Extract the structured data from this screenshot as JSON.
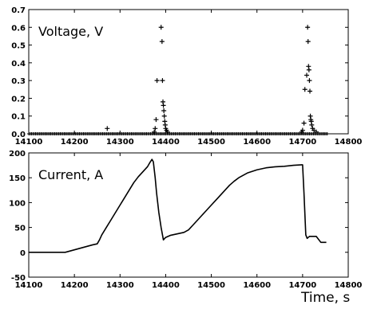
{
  "chart_data": [
    {
      "type": "scatter",
      "label": "Voltage, V",
      "xlim": [
        14100,
        14800
      ],
      "ylim": [
        0,
        0.7
      ],
      "xticks": [
        14100,
        14200,
        14300,
        14400,
        14500,
        14600,
        14700,
        14800
      ],
      "yticks": [
        0.0,
        0.1,
        0.2,
        0.3,
        0.4,
        0.5,
        0.6,
        0.7
      ],
      "tick_labels_x": [
        "14100",
        "14200",
        "14300",
        "14400",
        "14500",
        "14600",
        "14700",
        "14800"
      ],
      "tick_labels_y": [
        "0.0",
        "0.1",
        "0.2",
        "0.3",
        "0.4",
        "0.5",
        "0.6",
        "0.7"
      ],
      "marker": "+",
      "baseline": {
        "x_start": 14100,
        "x_end": 14755,
        "step": 3,
        "y": 0.0
      },
      "points": [
        [
          14272,
          0.03
        ],
        [
          14375,
          0.01
        ],
        [
          14377,
          0.03
        ],
        [
          14379,
          0.08
        ],
        [
          14381,
          0.3
        ],
        [
          14390,
          0.6
        ],
        [
          14392,
          0.52
        ],
        [
          14393,
          0.3
        ],
        [
          14394,
          0.18
        ],
        [
          14395,
          0.16
        ],
        [
          14396,
          0.13
        ],
        [
          14397,
          0.1
        ],
        [
          14398,
          0.07
        ],
        [
          14399,
          0.05
        ],
        [
          14400,
          0.03
        ],
        [
          14402,
          0.02
        ],
        [
          14404,
          0.01
        ],
        [
          14698,
          0.01
        ],
        [
          14700,
          0.02
        ],
        [
          14703,
          0.06
        ],
        [
          14705,
          0.25
        ],
        [
          14709,
          0.33
        ],
        [
          14711,
          0.6
        ],
        [
          14712,
          0.52
        ],
        [
          14713,
          0.38
        ],
        [
          14714,
          0.36
        ],
        [
          14715,
          0.3
        ],
        [
          14716,
          0.24
        ],
        [
          14717,
          0.1
        ],
        [
          14718,
          0.08
        ],
        [
          14719,
          0.07
        ],
        [
          14720,
          0.05
        ],
        [
          14722,
          0.03
        ],
        [
          14725,
          0.02
        ],
        [
          14730,
          0.01
        ]
      ],
      "color": "#000000"
    },
    {
      "type": "line",
      "label": "Current, A",
      "xlim": [
        14100,
        14800
      ],
      "ylim": [
        -50,
        200
      ],
      "xticks": [
        14100,
        14200,
        14300,
        14400,
        14500,
        14600,
        14700,
        14800
      ],
      "yticks": [
        -50,
        0,
        50,
        100,
        150,
        200
      ],
      "tick_labels_x": [
        "14100",
        "14200",
        "14300",
        "14400",
        "14500",
        "14600",
        "14700",
        "14800"
      ],
      "tick_labels_y": [
        "-50",
        "0",
        "50",
        "100",
        "150",
        "200"
      ],
      "points": [
        [
          14100,
          0
        ],
        [
          14180,
          0
        ],
        [
          14200,
          5
        ],
        [
          14220,
          10
        ],
        [
          14240,
          15
        ],
        [
          14250,
          17
        ],
        [
          14255,
          25
        ],
        [
          14260,
          35
        ],
        [
          14270,
          50
        ],
        [
          14280,
          65
        ],
        [
          14290,
          80
        ],
        [
          14300,
          95
        ],
        [
          14310,
          110
        ],
        [
          14320,
          125
        ],
        [
          14330,
          140
        ],
        [
          14340,
          152
        ],
        [
          14350,
          162
        ],
        [
          14360,
          172
        ],
        [
          14365,
          180
        ],
        [
          14370,
          187
        ],
        [
          14373,
          182
        ],
        [
          14377,
          150
        ],
        [
          14380,
          120
        ],
        [
          14385,
          80
        ],
        [
          14390,
          50
        ],
        [
          14395,
          25
        ],
        [
          14400,
          30
        ],
        [
          14410,
          34
        ],
        [
          14420,
          36
        ],
        [
          14430,
          38
        ],
        [
          14440,
          40
        ],
        [
          14450,
          45
        ],
        [
          14460,
          55
        ],
        [
          14470,
          65
        ],
        [
          14480,
          75
        ],
        [
          14490,
          85
        ],
        [
          14500,
          95
        ],
        [
          14510,
          105
        ],
        [
          14520,
          115
        ],
        [
          14530,
          125
        ],
        [
          14540,
          135
        ],
        [
          14550,
          143
        ],
        [
          14560,
          150
        ],
        [
          14570,
          155
        ],
        [
          14580,
          160
        ],
        [
          14590,
          163
        ],
        [
          14600,
          166
        ],
        [
          14610,
          168
        ],
        [
          14620,
          170
        ],
        [
          14640,
          172
        ],
        [
          14660,
          173
        ],
        [
          14680,
          175
        ],
        [
          14698,
          176
        ],
        [
          14700,
          176
        ],
        [
          14703,
          120
        ],
        [
          14707,
          35
        ],
        [
          14710,
          28
        ],
        [
          14715,
          32
        ],
        [
          14730,
          32
        ],
        [
          14740,
          20
        ],
        [
          14752,
          20
        ]
      ],
      "color": "#000000"
    }
  ],
  "x_axis_title": "Time, s"
}
